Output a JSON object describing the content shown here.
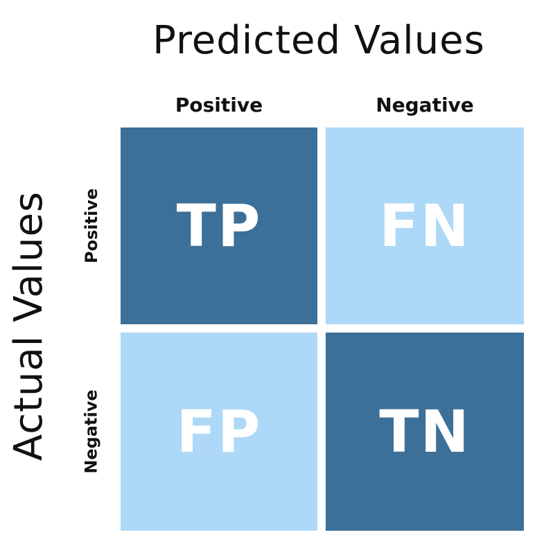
{
  "predicted_axis_title": "Predicted Values",
  "actual_axis_title": "Actual Values",
  "columns": [
    "Positive",
    "Negative"
  ],
  "rows": [
    "Positive",
    "Negative"
  ],
  "cells": [
    [
      "TP",
      "FN"
    ],
    [
      "FP",
      "TN"
    ]
  ],
  "colors": {
    "dark_cell": "#3C7099",
    "light_cell": "#ADD8F7",
    "cell_text": "#FFFFFF",
    "label_text": "#111111"
  }
}
